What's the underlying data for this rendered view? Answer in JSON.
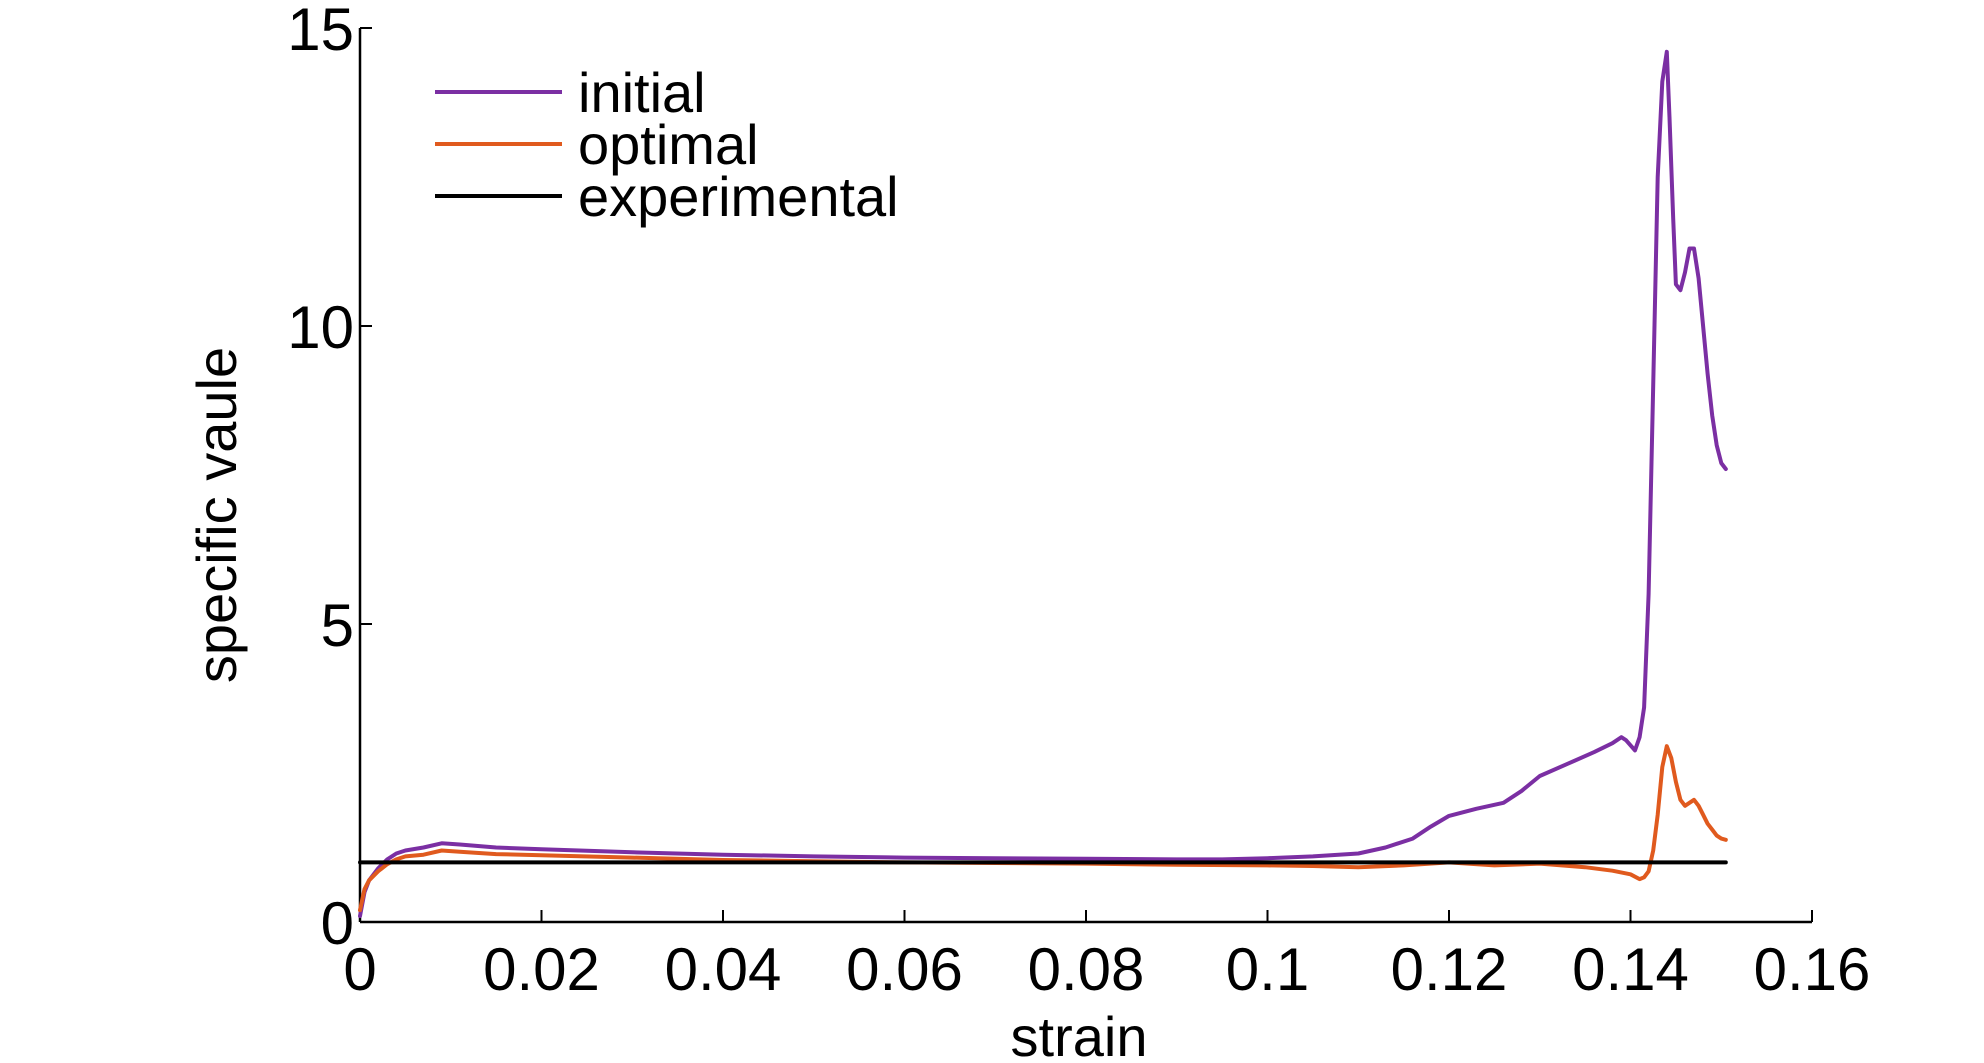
{
  "chart_data": {
    "type": "line",
    "title": "",
    "xlabel": "strain",
    "ylabel": "specific vaule",
    "xlim": [
      0,
      0.16
    ],
    "ylim": [
      0,
      15
    ],
    "xticks": [
      0,
      0.02,
      0.04,
      0.06,
      0.08,
      0.1,
      0.12,
      0.14,
      0.16
    ],
    "xtick_labels": [
      "0",
      "0.02",
      "0.04",
      "0.06",
      "0.08",
      "0.1",
      "0.12",
      "0.14",
      "0.16"
    ],
    "yticks": [
      0,
      5,
      10,
      15
    ],
    "ytick_labels": [
      "0",
      "5",
      "10",
      "15"
    ],
    "grid": false,
    "legend_position": "top-left",
    "series": [
      {
        "name": "initial",
        "color": "#7b2fa3",
        "x": [
          0,
          0.0005,
          0.001,
          0.002,
          0.003,
          0.004,
          0.005,
          0.007,
          0.009,
          0.011,
          0.015,
          0.02,
          0.03,
          0.04,
          0.05,
          0.06,
          0.07,
          0.08,
          0.09,
          0.095,
          0.1,
          0.105,
          0.11,
          0.113,
          0.116,
          0.118,
          0.12,
          0.123,
          0.126,
          0.128,
          0.13,
          0.133,
          0.136,
          0.138,
          0.139,
          0.1395,
          0.1405,
          0.141,
          0.1415,
          0.142,
          0.1425,
          0.143,
          0.1435,
          0.144,
          0.1443,
          0.1447,
          0.145,
          0.1455,
          0.146,
          0.1465,
          0.147,
          0.1475,
          0.148,
          0.1485,
          0.149,
          0.1495,
          0.15,
          0.1505
        ],
        "y": [
          0.1,
          0.5,
          0.7,
          0.9,
          1.05,
          1.15,
          1.2,
          1.25,
          1.32,
          1.3,
          1.25,
          1.22,
          1.17,
          1.13,
          1.1,
          1.08,
          1.07,
          1.06,
          1.05,
          1.05,
          1.07,
          1.1,
          1.15,
          1.25,
          1.4,
          1.6,
          1.78,
          1.9,
          2.0,
          2.2,
          2.45,
          2.65,
          2.85,
          3.0,
          3.1,
          3.05,
          2.88,
          3.1,
          3.6,
          5.5,
          9.0,
          12.5,
          14.1,
          14.6,
          13.5,
          11.8,
          10.7,
          10.6,
          10.9,
          11.3,
          11.3,
          10.8,
          10.0,
          9.2,
          8.5,
          8.0,
          7.7,
          7.6
        ]
      },
      {
        "name": "optimal",
        "color": "#e05a1e",
        "x": [
          0,
          0.0005,
          0.001,
          0.002,
          0.003,
          0.004,
          0.005,
          0.007,
          0.009,
          0.011,
          0.015,
          0.02,
          0.03,
          0.04,
          0.05,
          0.06,
          0.07,
          0.08,
          0.09,
          0.1,
          0.105,
          0.11,
          0.115,
          0.12,
          0.125,
          0.13,
          0.135,
          0.138,
          0.14,
          0.141,
          0.1415,
          0.142,
          0.1425,
          0.143,
          0.1435,
          0.144,
          0.1445,
          0.145,
          0.1455,
          0.146,
          0.1465,
          0.147,
          0.1475,
          0.148,
          0.1485,
          0.149,
          0.1495,
          0.15,
          0.1505
        ],
        "y": [
          0.2,
          0.55,
          0.7,
          0.85,
          0.97,
          1.05,
          1.1,
          1.13,
          1.2,
          1.18,
          1.14,
          1.12,
          1.08,
          1.04,
          1.02,
          1.0,
          0.99,
          0.98,
          0.96,
          0.95,
          0.94,
          0.92,
          0.95,
          1.0,
          0.95,
          0.98,
          0.92,
          0.86,
          0.8,
          0.72,
          0.75,
          0.85,
          1.2,
          1.8,
          2.6,
          2.95,
          2.75,
          2.35,
          2.05,
          1.95,
          2.0,
          2.05,
          1.95,
          1.8,
          1.65,
          1.55,
          1.45,
          1.4,
          1.38
        ]
      },
      {
        "name": "experimental",
        "color": "#000000",
        "x": [
          0,
          0.1505
        ],
        "y": [
          1.0,
          1.0
        ]
      }
    ]
  }
}
